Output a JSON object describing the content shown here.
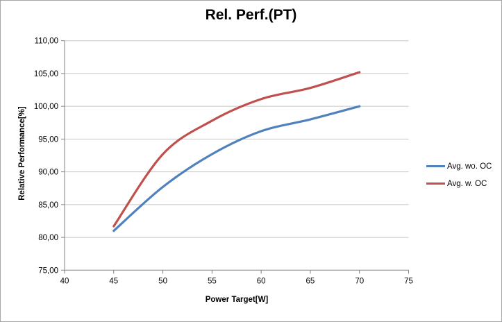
{
  "chart_data": {
    "type": "line",
    "title": "Rel. Perf.(PT)",
    "xlabel": "Power Target[W]",
    "ylabel": "Relative Performance[%]",
    "xlim": [
      40,
      75
    ],
    "ylim": [
      75,
      110
    ],
    "x_ticks": [
      40,
      45,
      50,
      55,
      60,
      65,
      70,
      75
    ],
    "x_tick_labels": [
      "40",
      "45",
      "50",
      "55",
      "60",
      "65",
      "70",
      "75"
    ],
    "y_ticks": [
      75,
      80,
      85,
      90,
      95,
      100,
      105,
      110
    ],
    "y_tick_labels": [
      "75,00",
      "80,00",
      "85,00",
      "90,00",
      "95,00",
      "100,00",
      "105,00",
      "110,00"
    ],
    "grid": "horizontal-only",
    "legend_position": "right",
    "line_style": "smooth",
    "x": [
      45,
      50,
      55,
      60,
      65,
      70
    ],
    "series": [
      {
        "name": "Avg. wo. OC",
        "color": "#4F81BD",
        "values": [
          81.0,
          87.7,
          92.7,
          96.2,
          98.0,
          100.0
        ]
      },
      {
        "name": "Avg. w. OC",
        "color": "#C0504D",
        "values": [
          81.7,
          92.7,
          97.8,
          101.1,
          102.8,
          105.2
        ]
      }
    ],
    "colors": {
      "axis": "#808080",
      "grid": "#C6C6C6",
      "text": "#000000",
      "background": "#FFFFFF",
      "frame_border": "#A6A6A6"
    }
  }
}
